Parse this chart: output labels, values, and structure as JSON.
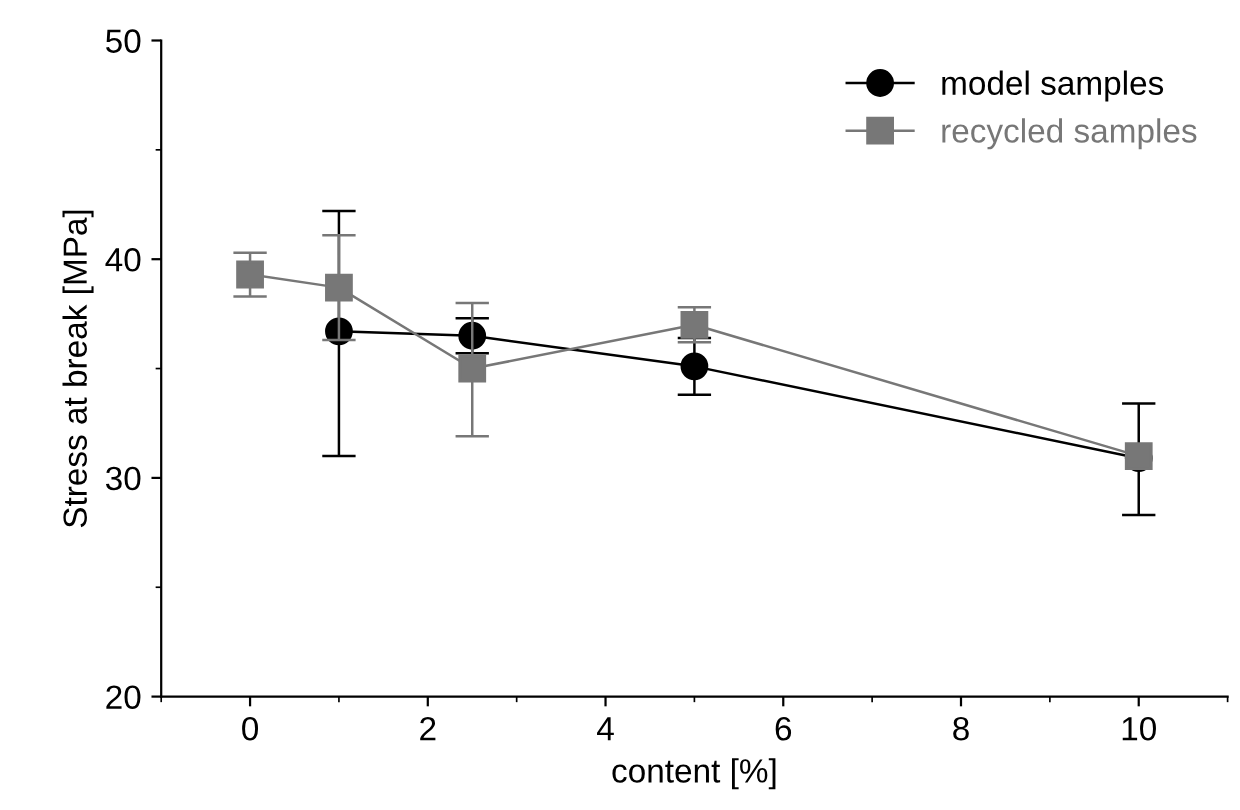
{
  "chart_data": {
    "type": "line",
    "xlabel": "content [%]",
    "ylabel": "Stress at break [MPa]",
    "xlim": [
      -1,
      11
    ],
    "xticks": [
      0,
      2,
      4,
      6,
      8,
      10
    ],
    "ylim": [
      20,
      50
    ],
    "yticks": [
      20,
      30,
      40,
      50
    ],
    "legend": "top right",
    "grid": false,
    "line_style": "solid",
    "series": [
      {
        "name": "model samples",
        "color": "#000000",
        "marker": "circle",
        "x": [
          1,
          2.5,
          5,
          10
        ],
        "values": [
          36.7,
          36.5,
          35.1,
          30.9
        ],
        "errors": [
          [
            31.0,
            42.2
          ],
          [
            35.7,
            37.3
          ],
          [
            33.8,
            36.4
          ],
          [
            28.3,
            33.4
          ]
        ]
      },
      {
        "name": "recycled samples",
        "color": "#777777",
        "marker": "square",
        "x": [
          0,
          1,
          2.5,
          5,
          10
        ],
        "values": [
          39.3,
          38.7,
          35.0,
          37.0,
          31.0
        ],
        "errors": [
          1.0,
          2.4,
          [
            31.9,
            38.0
          ],
          0.8,
          null
        ]
      }
    ]
  }
}
